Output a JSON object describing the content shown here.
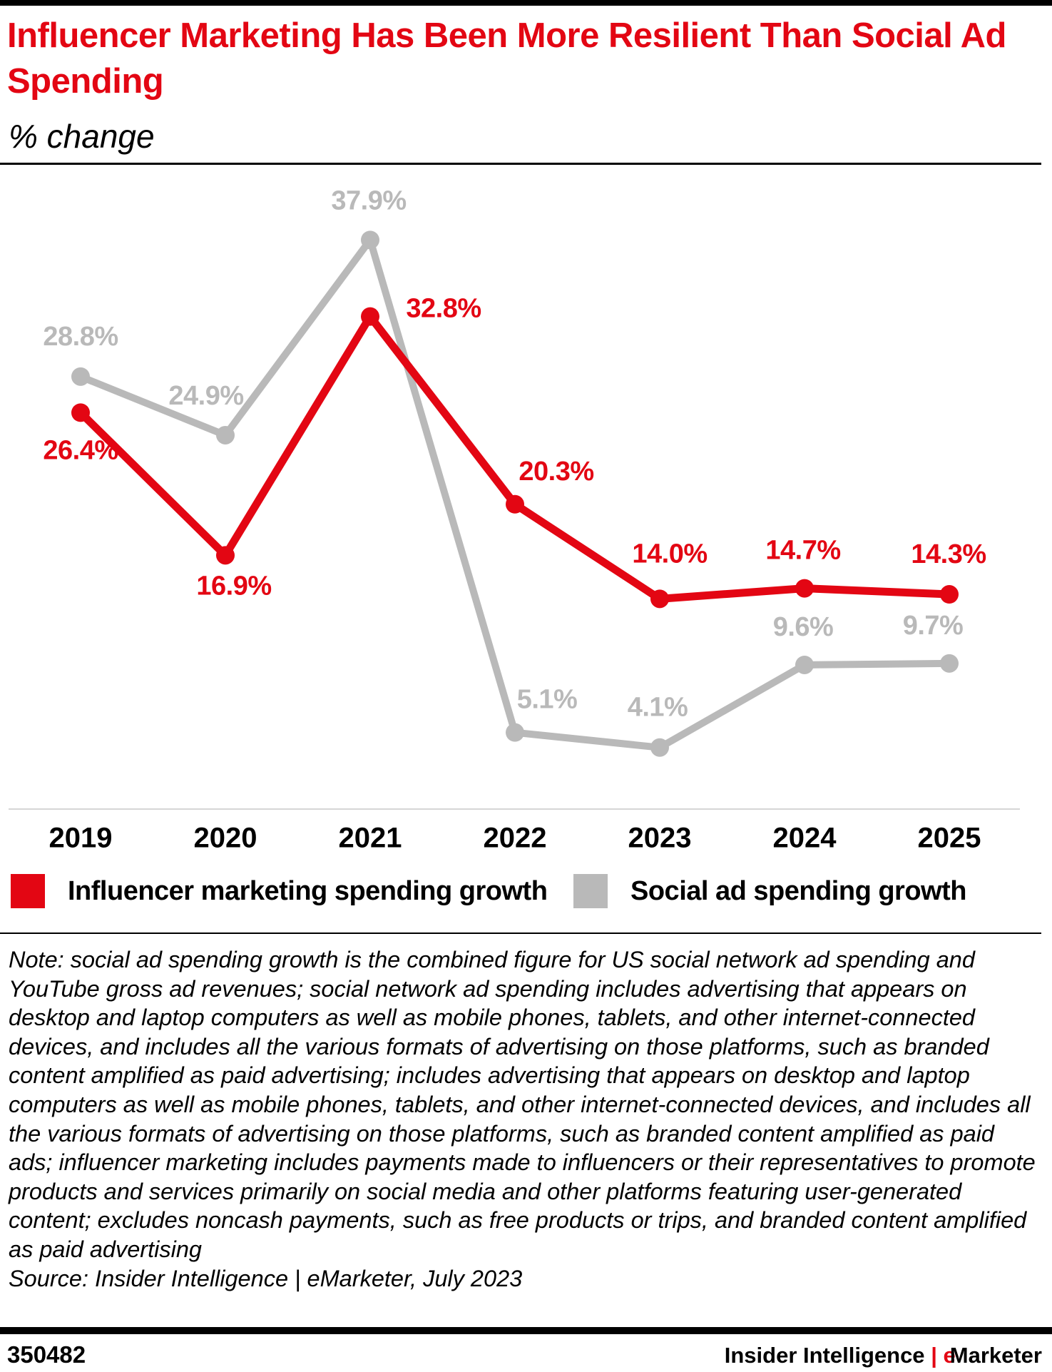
{
  "chart_data": {
    "type": "line",
    "title": "Influencer Marketing Has Been More Resilient Than Social Ad Spending",
    "subtitle": "% change",
    "categories": [
      "2019",
      "2020",
      "2021",
      "2022",
      "2023",
      "2024",
      "2025"
    ],
    "series": [
      {
        "name": "Influencer marketing spending growth",
        "color": "#e30613",
        "values": [
          26.4,
          16.9,
          32.8,
          20.3,
          14.0,
          14.7,
          14.3
        ],
        "value_labels": [
          "26.4%",
          "16.9%",
          "32.8%",
          "20.3%",
          "14.0%",
          "14.7%",
          "14.3%"
        ]
      },
      {
        "name": "Social ad spending growth",
        "color": "#b9b9b9",
        "values": [
          28.8,
          24.9,
          37.9,
          5.1,
          4.1,
          9.6,
          9.7
        ],
        "value_labels": [
          "28.8%",
          "24.9%",
          "37.9%",
          "5.1%",
          "4.1%",
          "9.6%",
          "9.7%"
        ]
      }
    ],
    "ylim": [
      0,
      43
    ],
    "note": "Note: social ad spending growth is the combined figure for US social network ad spending and YouTube gross ad revenues; social network ad spending includes advertising that appears on desktop and laptop computers as well as mobile phones, tablets, and other internet-connected devices, and includes all the various formats of advertising on those platforms, such as branded content amplified as paid advertising; includes advertising that appears on desktop and laptop computers as well as mobile phones, tablets, and other internet-connected devices, and includes all the various formats of advertising on those platforms, such as branded content amplified as paid ads; influencer marketing includes payments made to influencers or their representatives to promote products and services primarily on social media and other platforms featuring user-generated content; excludes noncash payments, such as free products or trips, and branded content amplified as paid advertising",
    "source": "Source: Insider Intelligence | eMarketer, July 2023"
  },
  "footer": {
    "id": "350482",
    "brand": "Insider Intelligence",
    "separator": "|",
    "brand_e": "e",
    "brand_rest": "Marketer"
  }
}
